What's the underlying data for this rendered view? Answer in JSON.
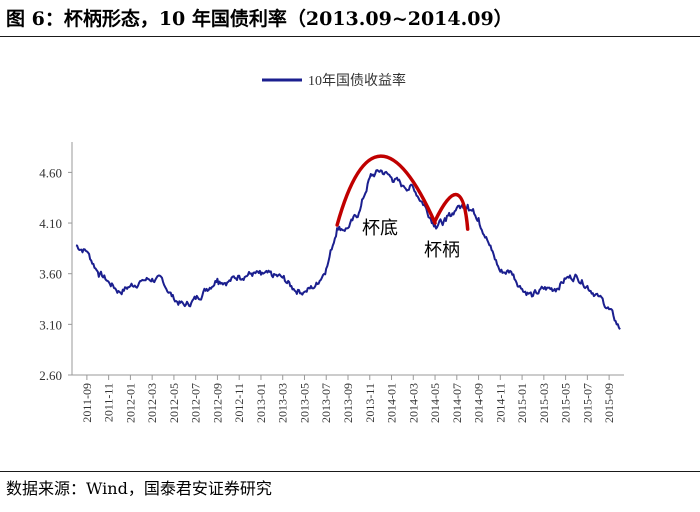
{
  "figure": {
    "title": "图 6：杯柄形态，10 年国债利率（2013.09~2014.09）",
    "source": "数据来源：Wind，国泰君安证券研究"
  },
  "chart_data": {
    "type": "line",
    "title": "",
    "xlabel": "",
    "ylabel": "",
    "legend": {
      "position": "top-center",
      "entries": [
        "10年国债收益率"
      ]
    },
    "ylim": [
      2.6,
      4.9
    ],
    "y_ticks": [
      "2.60",
      "3.10",
      "3.60",
      "4.10",
      "4.60"
    ],
    "x_ticks": [
      "2011-09",
      "2011-11",
      "2012-01",
      "2012-03",
      "2012-05",
      "2012-07",
      "2012-09",
      "2012-11",
      "2013-01",
      "2013-03",
      "2013-05",
      "2013-07",
      "2013-09",
      "2013-11",
      "2014-01",
      "2014-03",
      "2014-05",
      "2014-07",
      "2014-09",
      "2014-11",
      "2015-01",
      "2015-03",
      "2015-05",
      "2015-07",
      "2015-09"
    ],
    "grid": false,
    "series": [
      {
        "name": "10年国债收益率",
        "color": "#1b1f8f",
        "monthly": [
          [
            "2011-08",
            3.88
          ],
          [
            "2011-09",
            3.82
          ],
          [
            "2011-10",
            3.62
          ],
          [
            "2011-11",
            3.52
          ],
          [
            "2011-12",
            3.42
          ],
          [
            "2012-01",
            3.48
          ],
          [
            "2012-02",
            3.53
          ],
          [
            "2012-03",
            3.55
          ],
          [
            "2012-04",
            3.52
          ],
          [
            "2012-05",
            3.35
          ],
          [
            "2012-06",
            3.28
          ],
          [
            "2012-07",
            3.35
          ],
          [
            "2012-08",
            3.45
          ],
          [
            "2012-09",
            3.55
          ],
          [
            "2012-10",
            3.52
          ],
          [
            "2012-11",
            3.58
          ],
          [
            "2012-12",
            3.6
          ],
          [
            "2013-01",
            3.59
          ],
          [
            "2013-02",
            3.58
          ],
          [
            "2013-03",
            3.56
          ],
          [
            "2013-04",
            3.45
          ],
          [
            "2013-05",
            3.42
          ],
          [
            "2013-06",
            3.48
          ],
          [
            "2013-07",
            3.65
          ],
          [
            "2013-08",
            4.05
          ],
          [
            "2013-09",
            4.05
          ],
          [
            "2013-10",
            4.2
          ],
          [
            "2013-11",
            4.55
          ],
          [
            "2013-12",
            4.62
          ],
          [
            "2014-01",
            4.55
          ],
          [
            "2014-02",
            4.47
          ],
          [
            "2014-03",
            4.45
          ],
          [
            "2014-04",
            4.28
          ],
          [
            "2014-05",
            4.08
          ],
          [
            "2014-06",
            4.12
          ],
          [
            "2014-07",
            4.25
          ],
          [
            "2014-08",
            4.28
          ],
          [
            "2014-09",
            4.15
          ],
          [
            "2014-10",
            3.88
          ],
          [
            "2014-11",
            3.62
          ],
          [
            "2014-12",
            3.62
          ],
          [
            "2015-01",
            3.45
          ],
          [
            "2015-02",
            3.38
          ],
          [
            "2015-03",
            3.45
          ],
          [
            "2015-04",
            3.45
          ],
          [
            "2015-05",
            3.55
          ],
          [
            "2015-06",
            3.58
          ],
          [
            "2015-07",
            3.48
          ],
          [
            "2015-08",
            3.38
          ],
          [
            "2015-09",
            3.25
          ],
          [
            "2015-10",
            3.05
          ]
        ]
      }
    ],
    "annotations": [
      {
        "text": "杯底",
        "color": "#c00000",
        "arc": [
          [
            "2013-08",
            4.08
          ],
          [
            "2013-12",
            4.76
          ],
          [
            "2014-05",
            4.1
          ]
        ]
      },
      {
        "text": "杯柄",
        "color": "#c00000",
        "arc": [
          [
            "2014-05",
            4.12
          ],
          [
            "2014-07",
            4.38
          ],
          [
            "2014-08",
            4.04
          ]
        ]
      }
    ]
  }
}
